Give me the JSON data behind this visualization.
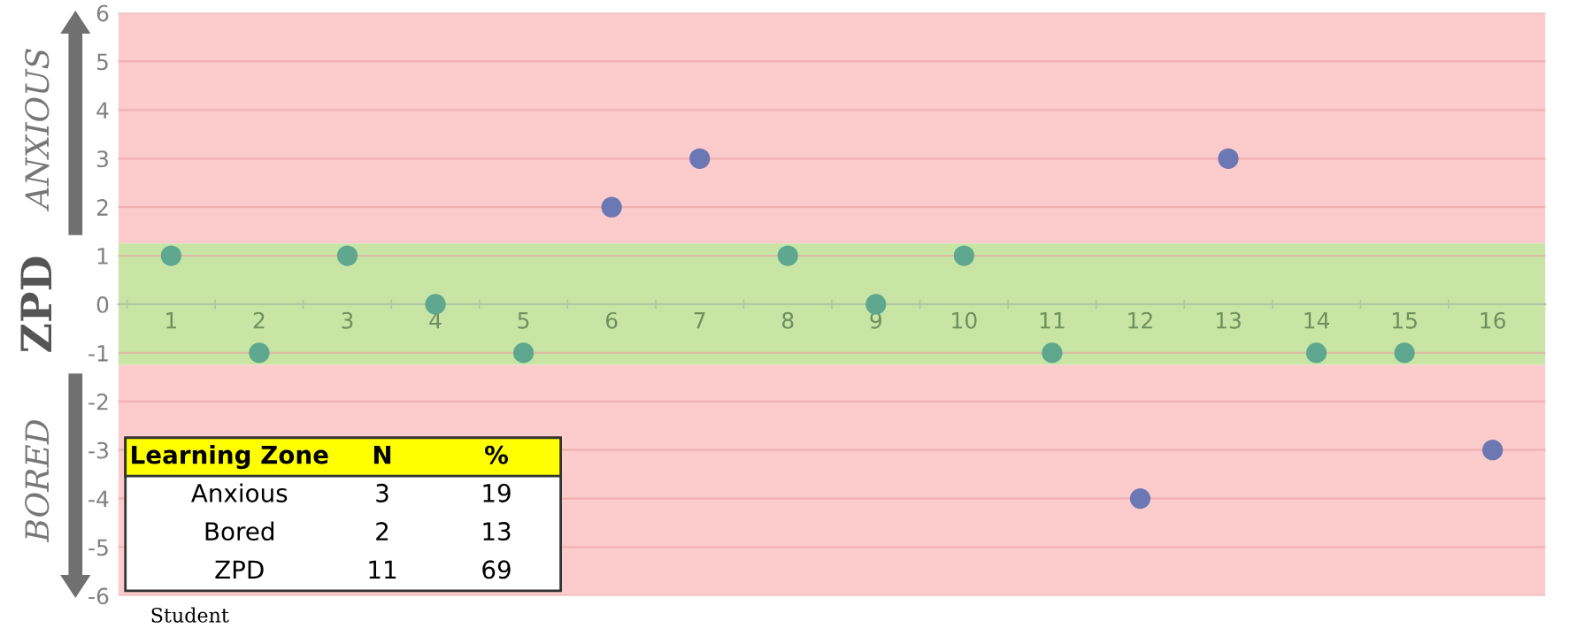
{
  "chart_data": {
    "type": "scatter",
    "xlabel": "Student",
    "categories": [
      "1",
      "2",
      "3",
      "4",
      "5",
      "6",
      "7",
      "8",
      "9",
      "10",
      "11",
      "12",
      "13",
      "14",
      "15",
      "16"
    ],
    "series": [
      {
        "color": "#5fa88f",
        "values": [
          1,
          -1,
          1,
          0,
          -1,
          null,
          null,
          1,
          0,
          1,
          -1,
          null,
          null,
          -1,
          -1,
          null
        ]
      },
      {
        "color": "#6b78b3",
        "values": [
          null,
          null,
          null,
          null,
          null,
          2,
          3,
          null,
          null,
          null,
          null,
          -4,
          3,
          null,
          null,
          -3
        ]
      }
    ],
    "ylim": [
      -6,
      6
    ],
    "yticks": [
      -6,
      -5,
      -4,
      -3,
      -2,
      -1,
      0,
      1,
      2,
      3,
      4,
      5,
      6
    ],
    "grid": "y",
    "marker": "circle",
    "bands": [
      {
        "axis": "y",
        "from": 1.25,
        "to": 6,
        "label": "ANXIOUS",
        "color": "#fccbcb"
      },
      {
        "axis": "y",
        "from": -1.25,
        "to": 1.25,
        "label": "ZPD",
        "color": "#c8e5a6"
      },
      {
        "axis": "y",
        "from": -6,
        "to": -1.25,
        "label": "BORED",
        "color": "#fccbcb"
      }
    ],
    "annotations": [
      "Learning Zone",
      "N",
      "%",
      "Anxious",
      "3",
      "19",
      "Bored",
      "2",
      "13",
      "ZPD",
      "11",
      "69"
    ]
  }
}
